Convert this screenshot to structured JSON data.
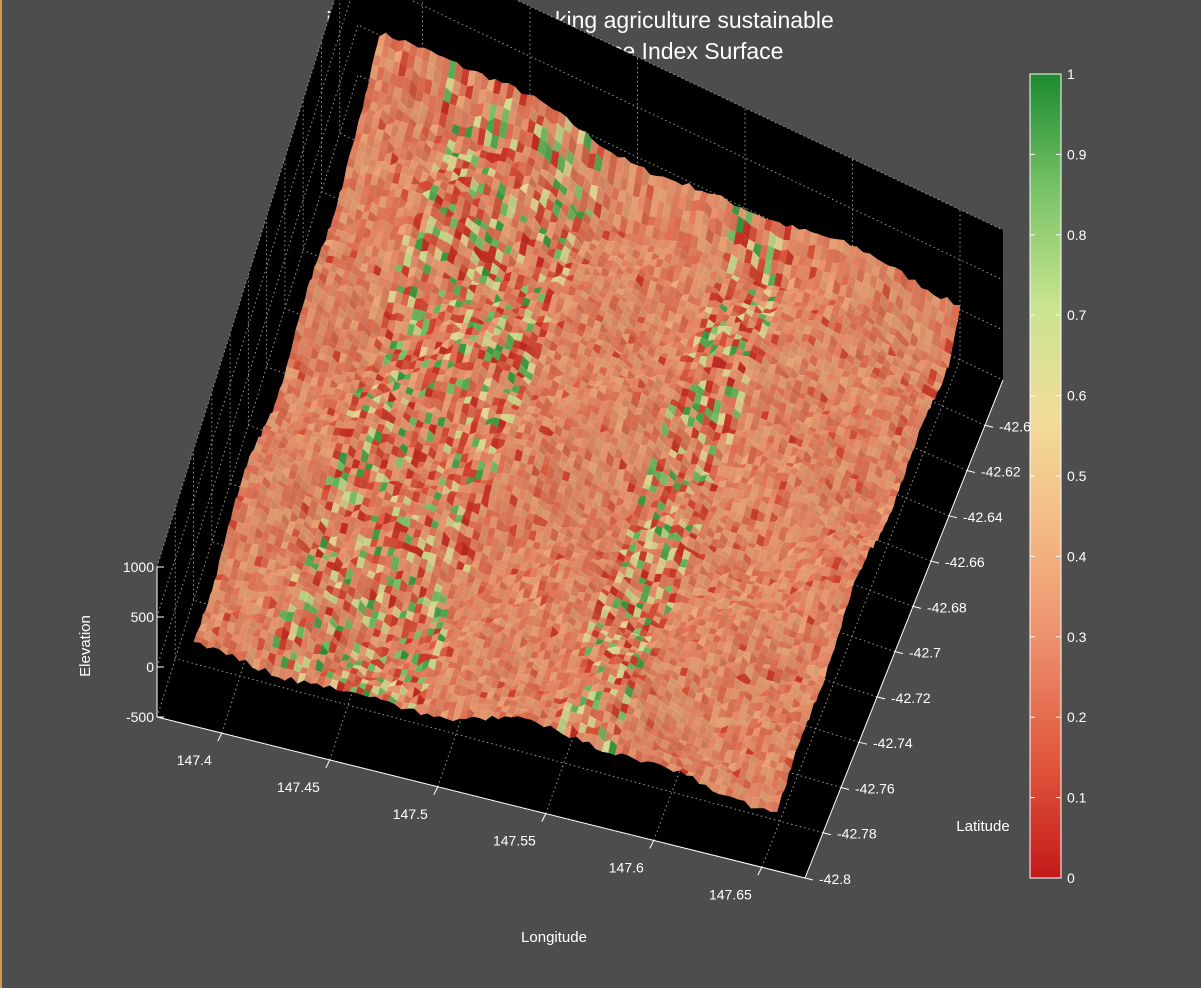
{
  "figure": {
    "background": "#4d4d4d",
    "plot_background": "#000000",
    "text_color": "#ffffff",
    "grid_color": "#9a9a9a"
  },
  "chart_data": {
    "type": "surface3d",
    "title": [
      "i-EKbase System - making agriculture sustainable",
      "Estimated Water Balance Index Surface"
    ],
    "xlabel": "Longitude",
    "ylabel": "Latitude",
    "zlabel": "Elevation",
    "x_ticks": [
      147.4,
      147.45,
      147.5,
      147.55,
      147.6,
      147.65
    ],
    "x_tick_labels": [
      "147.4",
      "147.45",
      "147.5",
      "147.55",
      "147.6",
      "147.65"
    ],
    "y_ticks": [
      -42.6,
      -42.62,
      -42.64,
      -42.66,
      -42.68,
      -42.7,
      -42.72,
      -42.74,
      -42.76,
      -42.78,
      -42.8
    ],
    "y_tick_labels": [
      "-42.6",
      "-42.62",
      "-42.64",
      "-42.66",
      "-42.68",
      "-42.7",
      "-42.72",
      "-42.74",
      "-42.76",
      "-42.78",
      "-42.8"
    ],
    "z_ticks": [
      -500,
      0,
      500,
      1000
    ],
    "z_tick_labels": [
      "-500",
      "0",
      "500",
      "1000"
    ],
    "xlim": [
      147.37,
      147.67
    ],
    "ylim": [
      -42.8,
      -42.58
    ],
    "zlim": [
      -500,
      1000
    ],
    "colorbar": {
      "min": 0,
      "max": 1,
      "ticks": [
        0,
        0.1,
        0.2,
        0.3,
        0.4,
        0.5,
        0.6,
        0.7,
        0.8,
        0.9,
        1
      ],
      "tick_labels": [
        "0",
        "0.1",
        "0.2",
        "0.3",
        "0.4",
        "0.5",
        "0.6",
        "0.7",
        "0.8",
        "0.9",
        "1"
      ],
      "colors": [
        "#c41a1a",
        "#e0563c",
        "#ec8c6a",
        "#f4b884",
        "#f2dc9a",
        "#c8e490",
        "#78c267",
        "#1c8a2f"
      ]
    },
    "surface_value_range": [
      0.05,
      0.95
    ],
    "surface_typical_value": 0.3
  }
}
